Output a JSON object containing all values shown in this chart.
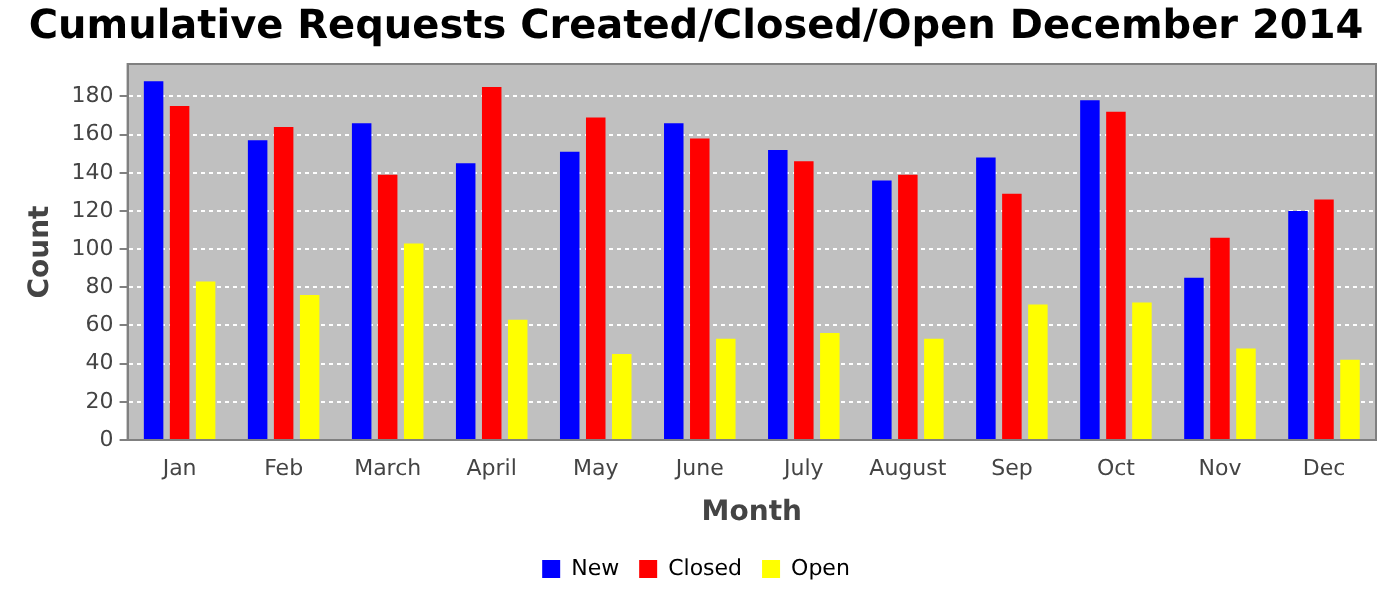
{
  "chart_data": {
    "type": "bar",
    "title": "Cumulative Requests Created/Closed/Open December 2014",
    "xlabel": "Month",
    "ylabel": "Count",
    "categories": [
      "Jan",
      "Feb",
      "March",
      "April",
      "May",
      "June",
      "July",
      "August",
      "Sep",
      "Oct",
      "Nov",
      "Dec"
    ],
    "series": [
      {
        "name": "New",
        "color": "#0000ff",
        "values": [
          188,
          157,
          166,
          145,
          151,
          166,
          152,
          136,
          148,
          178,
          85,
          120
        ]
      },
      {
        "name": "Closed",
        "color": "#ff0000",
        "values": [
          175,
          164,
          139,
          185,
          169,
          158,
          146,
          139,
          129,
          172,
          106,
          126
        ]
      },
      {
        "name": "Open",
        "color": "#ffff00",
        "values": [
          83,
          76,
          103,
          63,
          45,
          53,
          56,
          53,
          71,
          72,
          48,
          42
        ]
      }
    ],
    "ylim": [
      0,
      197
    ],
    "yticks": [
      0,
      20,
      40,
      60,
      80,
      100,
      120,
      140,
      160,
      180
    ],
    "grid": "y",
    "legend": "bottom"
  }
}
